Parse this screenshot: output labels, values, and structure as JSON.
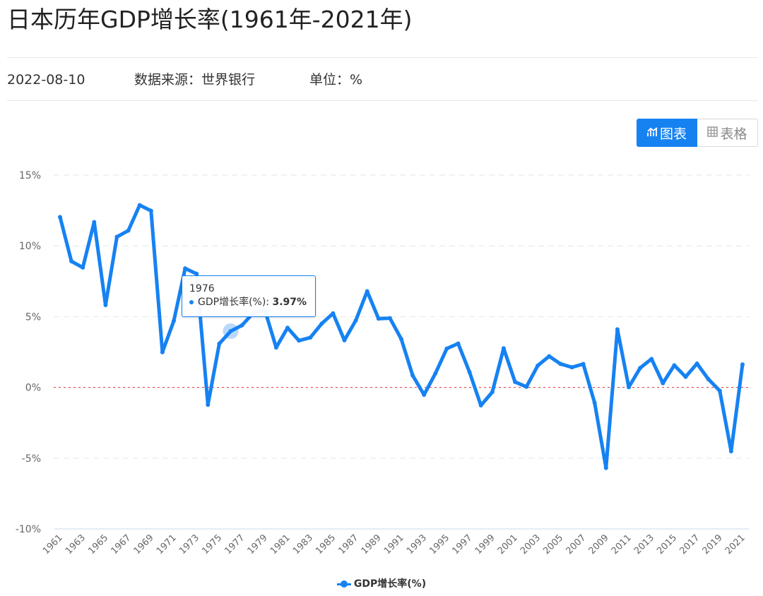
{
  "page": {
    "title": "日本历年GDP增长率(1961年-2021年)",
    "date": "2022-08-10",
    "source": "数据来源：世界银行",
    "unit": "单位：%"
  },
  "view_toggle": {
    "chart_label": "图表",
    "table_label": "表格",
    "active": "chart"
  },
  "tooltip": {
    "year": "1976",
    "series_label": "GDP增长率(%): ",
    "value": "3.97%"
  },
  "colors": {
    "line": "#1682f2",
    "zero_line": "#e0312b",
    "grid": "#e6e6e6"
  },
  "chart_data": {
    "type": "line",
    "title": "日本历年GDP增长率(1961年-2021年)",
    "ylim": [
      -10,
      15
    ],
    "yticks": [
      "15%",
      "10%",
      "5%",
      "0%",
      "-5%",
      "-10%"
    ],
    "ytick_values": [
      15,
      10,
      5,
      0,
      -5,
      -10
    ],
    "x": [
      1961,
      1962,
      1963,
      1964,
      1965,
      1966,
      1967,
      1968,
      1969,
      1970,
      1971,
      1972,
      1973,
      1974,
      1975,
      1976,
      1977,
      1978,
      1979,
      1980,
      1981,
      1982,
      1983,
      1984,
      1985,
      1986,
      1987,
      1988,
      1989,
      1990,
      1991,
      1992,
      1993,
      1994,
      1995,
      1996,
      1997,
      1998,
      1999,
      2000,
      2001,
      2002,
      2003,
      2004,
      2005,
      2006,
      2007,
      2008,
      2009,
      2010,
      2011,
      2012,
      2013,
      2014,
      2015,
      2016,
      2017,
      2018,
      2019,
      2020,
      2021
    ],
    "xtick_labels": [
      "1961",
      "1963",
      "1965",
      "1967",
      "1969",
      "1971",
      "1973",
      "1975",
      "1977",
      "1979",
      "1981",
      "1983",
      "1985",
      "1987",
      "1989",
      "1991",
      "1993",
      "1995",
      "1997",
      "1999",
      "2001",
      "2003",
      "2005",
      "2007",
      "2009",
      "2011",
      "2013",
      "2015",
      "2017",
      "2019",
      "2021"
    ],
    "series": [
      {
        "name": "GDP增长率(%)",
        "values": [
          12.04,
          8.91,
          8.47,
          11.68,
          5.82,
          10.64,
          11.08,
          12.88,
          12.48,
          2.49,
          4.7,
          8.41,
          8.03,
          -1.23,
          3.09,
          3.97,
          4.39,
          5.27,
          5.48,
          2.82,
          4.21,
          3.31,
          3.52,
          4.5,
          5.23,
          3.33,
          4.73,
          6.79,
          4.86,
          4.89,
          3.42,
          0.85,
          -0.52,
          0.99,
          2.74,
          3.1,
          1.08,
          -1.27,
          -0.33,
          2.76,
          0.39,
          0.04,
          1.54,
          2.2,
          1.66,
          1.42,
          1.65,
          -1.09,
          -5.69,
          4.1,
          0.02,
          1.37,
          2.01,
          0.3,
          1.56,
          0.75,
          1.68,
          0.58,
          -0.24,
          -4.51,
          1.62
        ]
      }
    ],
    "legend": "bottom-center",
    "grid": true,
    "highlight": {
      "x": 1976,
      "value": 3.97
    }
  }
}
